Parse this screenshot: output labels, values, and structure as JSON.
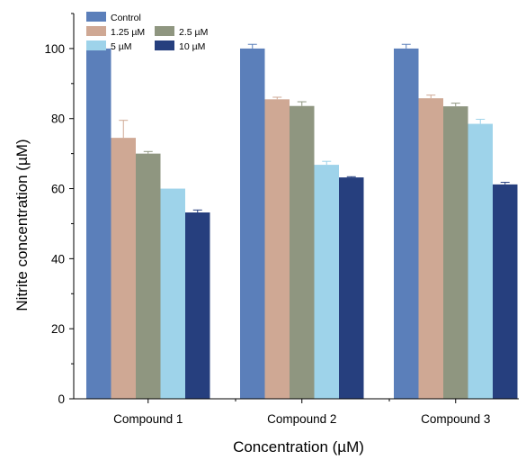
{
  "chart_data": {
    "type": "bar",
    "xlabel": "Concentration (µM)",
    "ylabel": "Nitrite concentration (µM)",
    "ylim": [
      0,
      110
    ],
    "yticks": [
      "0",
      "20",
      "40",
      "60",
      "80",
      "100"
    ],
    "categories": [
      "Compound 1",
      "Compound 2",
      "Compound 3"
    ],
    "series": [
      {
        "name": "Control",
        "color": "#5b7fba",
        "values": [
          100,
          100,
          100
        ],
        "errors": [
          1.2,
          1.2,
          1.2
        ]
      },
      {
        "name": "1.25 µM",
        "color": "#cfa894",
        "values": [
          74.5,
          85.5,
          85.8
        ],
        "errors": [
          5.0,
          0.6,
          0.9
        ]
      },
      {
        "name": "2.5 µM",
        "color": "#8f9680",
        "values": [
          70,
          83.6,
          83.5
        ],
        "errors": [
          0.6,
          1.2,
          0.9
        ]
      },
      {
        "name": "5 µM",
        "color": "#9ed3ea",
        "values": [
          60,
          66.8,
          78.5
        ],
        "errors": [
          0,
          1.0,
          1.3
        ]
      },
      {
        "name": "10 µM",
        "color": "#263f7e",
        "values": [
          53.2,
          63.2,
          61.2
        ],
        "errors": [
          0.7,
          0.2,
          0.6
        ]
      }
    ],
    "legend_position": "top-left",
    "grid": false
  }
}
